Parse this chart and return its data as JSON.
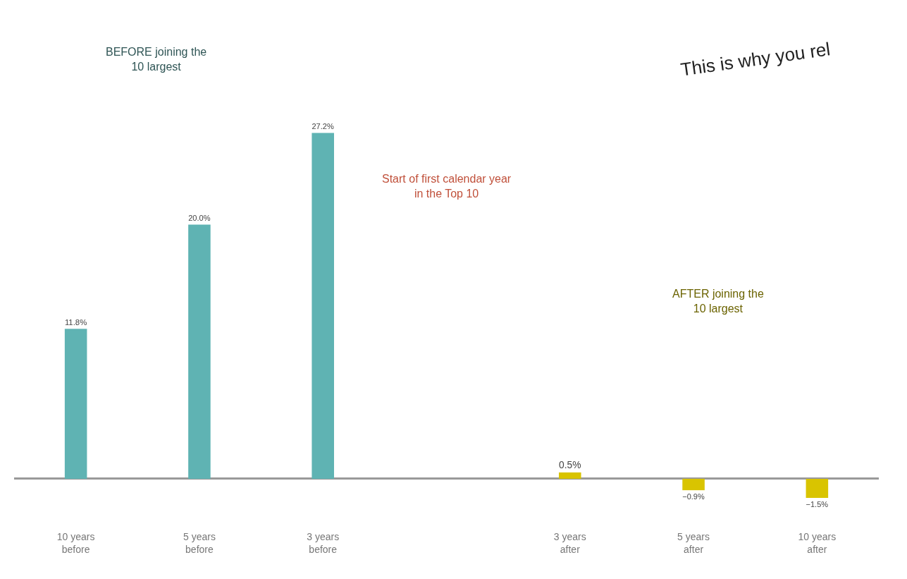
{
  "chart_data": {
    "type": "bar",
    "categories": [
      "10 years before",
      "5 years before",
      "3 years before",
      null,
      "3 years after",
      "5 years after",
      "10 years after"
    ],
    "values": [
      11.8,
      20.0,
      27.2,
      null,
      0.5,
      -0.9,
      -1.5
    ],
    "value_labels": [
      "11.8%",
      "20.0%",
      "27.2%",
      null,
      "0.5%",
      "−0.9%",
      "−1.5%"
    ],
    "colors": [
      "#5fb3b3",
      "#5fb3b3",
      "#5fb3b3",
      null,
      "#d9c400",
      "#d9c400",
      "#d9c400"
    ],
    "annotations": [
      "BEFORE joining the 10 largest",
      "Start of first calendar year in the Top 10",
      "AFTER joining the 10 largest",
      "This is why you rel"
    ]
  }
}
